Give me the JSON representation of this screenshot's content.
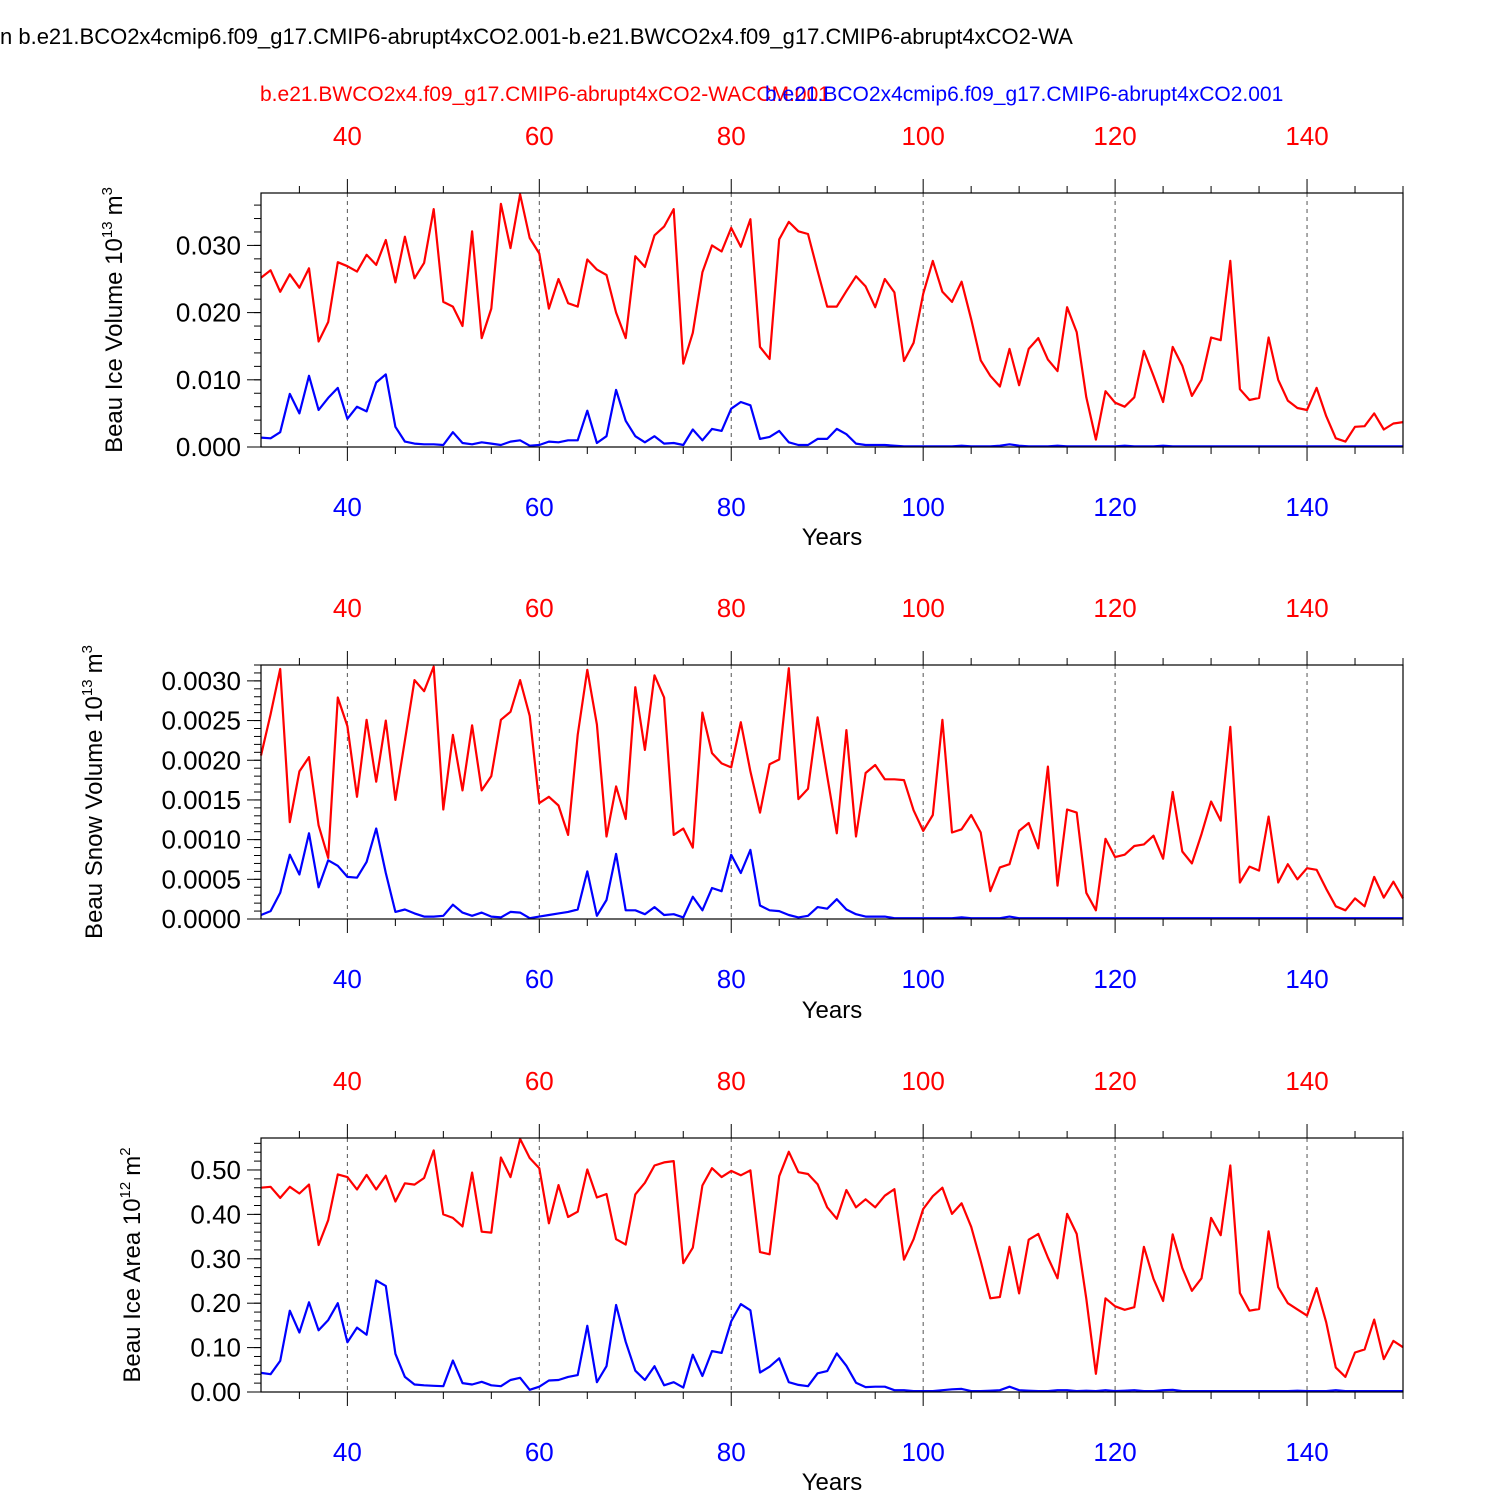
{
  "figure_title": "n b.e21.BCO2x4cmip6.f09_g17.CMIP6-abrupt4xCO2.001-b.e21.BWCO2x4.f09_g17.CMIP6-abrupt4xCO2-WA",
  "legend": {
    "red_name": "b.e21.BWCO2x4.f09_g17.CMIP6-abrupt4xCO2-WACCM.001",
    "blue_name": "b.e21.BCO2x4cmip6.f09_g17.CMIP6-abrupt4xCO2.001",
    "red_color": "#ff0000",
    "blue_color": "#0000ff"
  },
  "chart_data": [
    {
      "type": "line",
      "ylabel": "Beau Ice Volume 10",
      "ylabel_sup": "13",
      "ylabel_unit": "m",
      "ylabel_unit_sup": "3",
      "xlabel": "Years",
      "xlim": [
        31,
        150
      ],
      "ylim": [
        0.0,
        0.0378
      ],
      "xticks": [
        40,
        60,
        80,
        100,
        120,
        140
      ],
      "yticks": [
        0.0,
        0.01,
        0.02,
        0.03
      ],
      "ytick_labels": [
        "0.000",
        "0.010",
        "0.020",
        "0.030"
      ],
      "ytick_minor": 0.002,
      "grid": "x-dashed",
      "x_start": 31,
      "series": [
        {
          "color": "#ff0000",
          "values": [
            0.0252,
            0.0263,
            0.0231,
            0.0257,
            0.0237,
            0.0266,
            0.0157,
            0.0186,
            0.0275,
            0.0269,
            0.0261,
            0.0286,
            0.0271,
            0.0308,
            0.0245,
            0.0313,
            0.0251,
            0.0274,
            0.0354,
            0.0216,
            0.0209,
            0.018,
            0.0321,
            0.0162,
            0.0206,
            0.0362,
            0.0296,
            0.0376,
            0.0311,
            0.0288,
            0.0206,
            0.025,
            0.0214,
            0.0209,
            0.0279,
            0.0264,
            0.0256,
            0.02,
            0.0162,
            0.0284,
            0.0268,
            0.0315,
            0.0328,
            0.0354,
            0.0124,
            0.017,
            0.026,
            0.03,
            0.0291,
            0.0326,
            0.0298,
            0.0339,
            0.0149,
            0.0131,
            0.0309,
            0.0335,
            0.0321,
            0.0317,
            0.0262,
            0.0209,
            0.0209,
            0.0232,
            0.0254,
            0.0239,
            0.0208,
            0.025,
            0.023,
            0.0128,
            0.0155,
            0.0228,
            0.0277,
            0.0231,
            0.0216,
            0.0246,
            0.019,
            0.0129,
            0.0106,
            0.009,
            0.0146,
            0.0092,
            0.0146,
            0.0162,
            0.013,
            0.0113,
            0.0208,
            0.0171,
            0.0074,
            0.0011,
            0.0083,
            0.0066,
            0.006,
            0.0074,
            0.0143,
            0.0106,
            0.0067,
            0.0149,
            0.0121,
            0.0076,
            0.01,
            0.0163,
            0.0159,
            0.0277,
            0.0086,
            0.007,
            0.0073,
            0.0163,
            0.01,
            0.0069,
            0.0058,
            0.0055,
            0.0088,
            0.0046,
            0.0013,
            0.0008,
            0.003,
            0.0031,
            0.005,
            0.0026,
            0.0035,
            0.0037
          ]
        },
        {
          "color": "#0000ff",
          "values": [
            0.0014,
            0.0013,
            0.0022,
            0.0079,
            0.005,
            0.0106,
            0.0055,
            0.0073,
            0.0088,
            0.0042,
            0.006,
            0.0053,
            0.0096,
            0.0108,
            0.003,
            0.0008,
            0.0005,
            0.0004,
            0.0004,
            0.0003,
            0.0022,
            0.0006,
            0.0004,
            0.0007,
            0.0005,
            0.0003,
            0.0008,
            0.001,
            0.0002,
            0.0003,
            0.0008,
            0.0007,
            0.001,
            0.001,
            0.0054,
            0.0006,
            0.0016,
            0.0085,
            0.0039,
            0.0016,
            0.0007,
            0.0016,
            0.0005,
            0.0006,
            0.0003,
            0.0026,
            0.001,
            0.0027,
            0.0024,
            0.0057,
            0.0067,
            0.0062,
            0.0012,
            0.0015,
            0.0024,
            0.0007,
            0.0003,
            0.0003,
            0.0012,
            0.0012,
            0.0027,
            0.0019,
            0.0005,
            0.0003,
            0.0003,
            0.0003,
            0.0002,
            0.0001,
            0.0001,
            0.0001,
            0.0001,
            0.0001,
            0.0001,
            0.0002,
            0.0001,
            0.0001,
            0.0001,
            0.0002,
            0.0004,
            0.0002,
            0.0001,
            0.0001,
            0.0001,
            0.0002,
            0.0001,
            0.0001,
            0.0001,
            0.0001,
            0.0001,
            0.0001,
            0.0002,
            0.0001,
            0.0001,
            0.0001,
            0.0002,
            0.0001,
            0.0001,
            0.0001,
            0.0001,
            0.0001,
            0.0001,
            0.0001,
            0.0001,
            0.0001,
            0.0001,
            0.0001,
            0.0001,
            0.0001,
            0.0001,
            0.0001,
            0.0001,
            0.0001,
            0.0001,
            0.0001,
            0.0001,
            0.0001,
            0.0001,
            0.0001,
            0.0001,
            0.0001
          ]
        }
      ]
    },
    {
      "type": "line",
      "ylabel": "Beau Snow Volume 10",
      "ylabel_sup": "13",
      "ylabel_unit": "m",
      "ylabel_unit_sup": "3",
      "xlabel": "Years",
      "xlim": [
        31,
        150
      ],
      "ylim": [
        0.0,
        0.0032
      ],
      "xticks": [
        40,
        60,
        80,
        100,
        120,
        140
      ],
      "yticks": [
        0.0,
        0.0005,
        0.001,
        0.0015,
        0.002,
        0.0025,
        0.003
      ],
      "ytick_labels": [
        "0.0000",
        "0.0005",
        "0.0010",
        "0.0015",
        "0.0020",
        "0.0025",
        "0.0030"
      ],
      "ytick_minor": 0.0001,
      "grid": "x-dashed",
      "x_start": 31,
      "series": [
        {
          "color": "#ff0000",
          "values": [
            0.00206,
            0.00258,
            0.00315,
            0.00122,
            0.00186,
            0.00204,
            0.00118,
            0.00077,
            0.00279,
            0.00243,
            0.00154,
            0.00251,
            0.00173,
            0.0025,
            0.0015,
            0.00225,
            0.00301,
            0.00287,
            0.00318,
            0.00138,
            0.00232,
            0.00162,
            0.00244,
            0.00162,
            0.0018,
            0.00251,
            0.00261,
            0.00301,
            0.00256,
            0.00146,
            0.00154,
            0.00143,
            0.00106,
            0.00232,
            0.00314,
            0.00245,
            0.00104,
            0.00167,
            0.00126,
            0.00292,
            0.00213,
            0.00307,
            0.00279,
            0.00106,
            0.00114,
            0.0009,
            0.0026,
            0.00209,
            0.00196,
            0.00191,
            0.00248,
            0.00186,
            0.00134,
            0.00195,
            0.00201,
            0.00316,
            0.00151,
            0.00164,
            0.00254,
            0.0018,
            0.00108,
            0.00238,
            0.00104,
            0.00184,
            0.00194,
            0.00176,
            0.00176,
            0.00175,
            0.00137,
            0.00111,
            0.00131,
            0.00251,
            0.00109,
            0.00113,
            0.00131,
            0.00109,
            0.00035,
            0.00065,
            0.00069,
            0.00111,
            0.00121,
            0.00089,
            0.00192,
            0.00042,
            0.00138,
            0.00134,
            0.00033,
            0.00011,
            0.00101,
            0.00078,
            0.00081,
            0.00092,
            0.00094,
            0.00105,
            0.00076,
            0.0016,
            0.00085,
            0.0007,
            0.00107,
            0.00148,
            0.00124,
            0.00242,
            0.00046,
            0.00066,
            0.00061,
            0.00129,
            0.00046,
            0.00069,
            0.0005,
            0.00064,
            0.00062,
            0.00038,
            0.00016,
            0.00011,
            0.00026,
            0.00016,
            0.00053,
            0.00027,
            0.00047,
            0.00026
          ]
        },
        {
          "color": "#0000ff",
          "values": [
            5e-05,
            0.0001,
            0.00033,
            0.00081,
            0.00056,
            0.00108,
            0.0004,
            0.00074,
            0.00067,
            0.00053,
            0.00052,
            0.00072,
            0.00114,
            0.00058,
            9e-05,
            0.00012,
            7e-05,
            3e-05,
            3e-05,
            4e-05,
            0.00018,
            8e-05,
            4e-05,
            8e-05,
            3e-05,
            2e-05,
            9e-05,
            8e-05,
            1e-05,
            3e-05,
            5e-05,
            7e-05,
            9e-05,
            0.00012,
            0.0006,
            4e-05,
            0.00024,
            0.00082,
            0.00011,
            0.00011,
            6e-05,
            0.00015,
            5e-05,
            6e-05,
            2e-05,
            0.00028,
            0.00011,
            0.00039,
            0.00035,
            0.00081,
            0.00058,
            0.00087,
            0.00017,
            0.00011,
            0.0001,
            5e-05,
            2e-05,
            4e-05,
            0.00015,
            0.00013,
            0.00025,
            0.00012,
            6e-05,
            3e-05,
            3e-05,
            3e-05,
            1e-05,
            1e-05,
            1e-05,
            1e-05,
            1e-05,
            1e-05,
            1e-05,
            2e-05,
            1e-05,
            1e-05,
            1e-05,
            1e-05,
            3e-05,
            1e-05,
            1e-05,
            1e-05,
            1e-05,
            1e-05,
            1e-05,
            1e-05,
            1e-05,
            1e-05,
            1e-05,
            1e-05,
            1e-05,
            1e-05,
            1e-05,
            1e-05,
            1e-05,
            1e-05,
            1e-05,
            1e-05,
            1e-05,
            1e-05,
            1e-05,
            1e-05,
            1e-05,
            1e-05,
            1e-05,
            1e-05,
            1e-05,
            1e-05,
            1e-05,
            1e-05,
            1e-05,
            1e-05,
            1e-05,
            1e-05,
            1e-05,
            1e-05,
            1e-05,
            1e-05,
            1e-05,
            1e-05
          ]
        }
      ]
    },
    {
      "type": "line",
      "ylabel": "Beau Ice Area 10",
      "ylabel_sup": "12",
      "ylabel_unit": "m",
      "ylabel_unit_sup": "2",
      "xlabel": "Years",
      "xlim": [
        31,
        150
      ],
      "ylim": [
        0.0,
        0.572
      ],
      "xticks": [
        40,
        60,
        80,
        100,
        120,
        140
      ],
      "yticks": [
        0.0,
        0.1,
        0.2,
        0.3,
        0.4,
        0.5
      ],
      "ytick_labels": [
        "0.00",
        "0.10",
        "0.20",
        "0.30",
        "0.40",
        "0.50"
      ],
      "ytick_minor": 0.02,
      "grid": "x-dashed",
      "x_start": 31,
      "series": [
        {
          "color": "#ff0000",
          "values": [
            0.46,
            0.462,
            0.437,
            0.462,
            0.447,
            0.467,
            0.331,
            0.387,
            0.49,
            0.484,
            0.456,
            0.489,
            0.456,
            0.487,
            0.429,
            0.47,
            0.467,
            0.482,
            0.544,
            0.4,
            0.392,
            0.373,
            0.494,
            0.361,
            0.359,
            0.528,
            0.484,
            0.57,
            0.527,
            0.504,
            0.38,
            0.466,
            0.394,
            0.406,
            0.501,
            0.438,
            0.446,
            0.344,
            0.332,
            0.445,
            0.471,
            0.51,
            0.517,
            0.52,
            0.29,
            0.325,
            0.465,
            0.504,
            0.484,
            0.498,
            0.488,
            0.499,
            0.315,
            0.31,
            0.486,
            0.541,
            0.495,
            0.491,
            0.468,
            0.416,
            0.39,
            0.455,
            0.416,
            0.434,
            0.416,
            0.442,
            0.457,
            0.298,
            0.344,
            0.412,
            0.441,
            0.46,
            0.401,
            0.425,
            0.372,
            0.295,
            0.211,
            0.214,
            0.327,
            0.222,
            0.343,
            0.356,
            0.303,
            0.256,
            0.401,
            0.356,
            0.21,
            0.041,
            0.211,
            0.193,
            0.185,
            0.191,
            0.327,
            0.255,
            0.205,
            0.355,
            0.279,
            0.228,
            0.256,
            0.392,
            0.353,
            0.51,
            0.223,
            0.183,
            0.187,
            0.362,
            0.236,
            0.2,
            0.186,
            0.172,
            0.234,
            0.157,
            0.055,
            0.034,
            0.089,
            0.096,
            0.163,
            0.074,
            0.115,
            0.101
          ]
        },
        {
          "color": "#0000ff",
          "values": [
            0.043,
            0.04,
            0.07,
            0.183,
            0.134,
            0.202,
            0.139,
            0.162,
            0.2,
            0.112,
            0.145,
            0.129,
            0.251,
            0.239,
            0.086,
            0.034,
            0.017,
            0.015,
            0.014,
            0.013,
            0.071,
            0.02,
            0.017,
            0.023,
            0.015,
            0.013,
            0.027,
            0.032,
            0.005,
            0.012,
            0.026,
            0.027,
            0.034,
            0.038,
            0.149,
            0.022,
            0.058,
            0.196,
            0.113,
            0.048,
            0.027,
            0.058,
            0.015,
            0.022,
            0.01,
            0.084,
            0.036,
            0.092,
            0.088,
            0.159,
            0.198,
            0.184,
            0.044,
            0.057,
            0.076,
            0.022,
            0.016,
            0.013,
            0.042,
            0.047,
            0.087,
            0.059,
            0.021,
            0.011,
            0.012,
            0.012,
            0.004,
            0.004,
            0.002,
            0.002,
            0.002,
            0.004,
            0.006,
            0.007,
            0.002,
            0.002,
            0.003,
            0.004,
            0.012,
            0.004,
            0.003,
            0.002,
            0.002,
            0.004,
            0.004,
            0.002,
            0.003,
            0.002,
            0.004,
            0.002,
            0.003,
            0.004,
            0.002,
            0.002,
            0.004,
            0.005,
            0.002,
            0.002,
            0.002,
            0.002,
            0.002,
            0.002,
            0.002,
            0.002,
            0.002,
            0.002,
            0.002,
            0.002,
            0.003,
            0.002,
            0.002,
            0.002,
            0.004,
            0.002,
            0.002,
            0.002,
            0.002,
            0.002,
            0.002,
            0.002
          ]
        }
      ]
    }
  ]
}
